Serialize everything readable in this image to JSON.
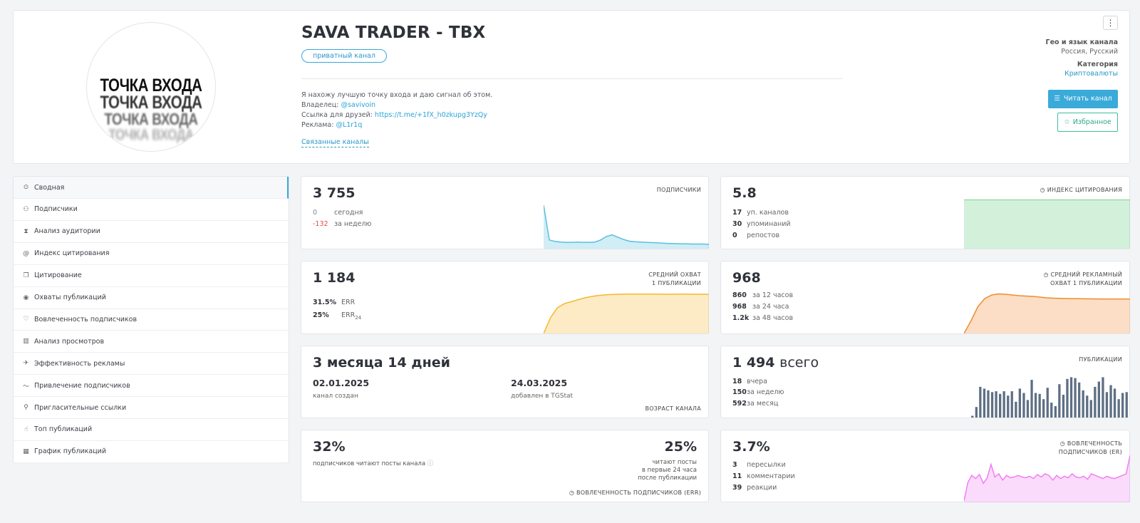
{
  "header": {
    "title": "SAVA TRADER - TBX",
    "badge": "приватный канал",
    "description": "Я нахожу лучшую точку входа и даю сигнал об этом.",
    "owner_label": "Владелец:",
    "owner": "@savivoin",
    "friends_label": "Ссылка для друзей:",
    "friends_link": "https://t.me/+1fX_h0zkupg3YzQy",
    "ads_label": "Реклама:",
    "ads": "@L1r1q",
    "related": "Связанные каналы",
    "geo_label": "Гео и язык канала",
    "geo_value": "Россия, Русский",
    "category_label": "Категория",
    "category_value": "Криптовалюты",
    "read_button": "Читать канал",
    "favorite_button": "Избранное",
    "menu_icon": "⋮",
    "avatar_logo": [
      "ТОЧКА ВХОДА",
      "ТОЧКА ВХОДА",
      "ТОЧКА ВХОДА",
      "ТОЧКА ВХОДА"
    ]
  },
  "sidebar": {
    "items": [
      {
        "label": "Сводная",
        "icon": "⊙",
        "active": true
      },
      {
        "label": "Подписчики",
        "icon": "⚇"
      },
      {
        "label": "Анализ аудитории",
        "icon": "⧗"
      },
      {
        "label": "Индекс цитирования",
        "icon": "@"
      },
      {
        "label": "Цитирование",
        "icon": "❐"
      },
      {
        "label": "Охваты публикаций",
        "icon": "◉"
      },
      {
        "label": "Вовлеченность подписчиков",
        "icon": "♡"
      },
      {
        "label": "Анализ просмотров",
        "icon": "▥"
      },
      {
        "label": "Эффективность рекламы",
        "icon": "✈"
      },
      {
        "label": "Привлечение подписчиков",
        "icon": "〜"
      },
      {
        "label": "Пригласительные ссылки",
        "icon": "⚲"
      },
      {
        "label": "Топ публикаций",
        "icon": "☝"
      },
      {
        "label": "График публикаций",
        "icon": "▦"
      }
    ]
  },
  "stats": {
    "subscribers": {
      "value": "3 755",
      "title": "ПОДПИСЧИКИ",
      "today_value": "0",
      "today_label": "сегодня",
      "week_value": "-132",
      "week_label": "за неделю"
    },
    "citation": {
      "value": "5.8",
      "title": "ИНДЕКС ЦИТИРОВАНИЯ",
      "r1v": "17",
      "r1l": "уп. каналов",
      "r2v": "30",
      "r2l": "упоминаний",
      "r3v": "0",
      "r3l": "репостов"
    },
    "reach": {
      "value": "1 184",
      "title1": "СРЕДНИЙ ОХВАТ",
      "title2": "1 ПУБЛИКАЦИИ",
      "err_value": "31.5%",
      "err_label": "ERR",
      "err24_value": "25%",
      "err24_label": "ERR",
      "err24_sub": "24"
    },
    "ad_reach": {
      "value": "968",
      "title1": "СРЕДНИЙ РЕКЛАМНЫЙ",
      "title2": "ОХВАТ 1 ПУБЛИКАЦИИ",
      "r1v": "860",
      "r1l": "за 12 часов",
      "r2v": "968",
      "r2l": "за 24 часа",
      "r3v": "1.2k",
      "r3l": "за 48 часов"
    },
    "age": {
      "value": "3 месяца 14 дней",
      "created_date": "02.01.2025",
      "created_label": "канал создан",
      "added_date": "24.03.2025",
      "added_label": "добавлен в TGStat",
      "title": "ВОЗРАСТ КАНАЛА"
    },
    "posts": {
      "value": "1 494",
      "value_suffix": "всего",
      "title": "ПУБЛИКАЦИИ",
      "r1v": "18",
      "r1l": "вчера",
      "r2v": "150",
      "r2l": "за неделю",
      "r3v": "592",
      "r3l": "за месяц"
    },
    "err": {
      "value": "32%",
      "label": "подписчиков читают посты канала",
      "value2": "25%",
      "label2a": "читают посты",
      "label2b": "в первые 24 часа",
      "label2c": "после публикации",
      "title": "ВОВЛЕЧЕННОСТЬ ПОДПИСЧИКОВ (ERR)"
    },
    "er": {
      "value": "3.7%",
      "title1": "ВОВЛЕЧЕННОСТЬ",
      "title2": "ПОДПИСЧИКОВ (ER)",
      "r1v": "3",
      "r1l": "пересылки",
      "r2v": "11",
      "r2l": "комментарии",
      "r3v": "39",
      "r3l": "реакции"
    }
  },
  "chart_data": [
    {
      "type": "area",
      "name": "subscribers",
      "color": "#5bbfe0",
      "values": [
        3890,
        3770,
        3765,
        3763,
        3762,
        3762,
        3763,
        3762,
        3762,
        3763,
        3770,
        3782,
        3788,
        3780,
        3772,
        3766,
        3764,
        3763,
        3762,
        3761,
        3760,
        3759,
        3758,
        3758,
        3757,
        3757,
        3756,
        3756,
        3756,
        3755
      ],
      "ylim": [
        3740,
        3900
      ]
    },
    {
      "type": "area",
      "name": "citation",
      "color": "#5cc97a",
      "values": [
        1,
        1,
        1,
        1,
        1,
        1,
        1,
        1,
        1,
        1
      ],
      "ylim": [
        0,
        1
      ]
    },
    {
      "type": "area",
      "name": "reach",
      "color": "#f5b82e",
      "values": [
        0,
        480,
        780,
        900,
        960,
        1020,
        1080,
        1120,
        1150,
        1170,
        1180,
        1186,
        1188,
        1190,
        1192,
        1190,
        1188,
        1186,
        1185,
        1186,
        1188,
        1187,
        1186,
        1185,
        1184
      ],
      "ylim": [
        0,
        1400
      ]
    },
    {
      "type": "area",
      "name": "ad_reach",
      "color": "#f28a2e",
      "values": [
        0,
        350,
        750,
        980,
        1080,
        1110,
        1100,
        1080,
        1060,
        1050,
        1040,
        1020,
        1000,
        990,
        985,
        980,
        978,
        975,
        972,
        970,
        968,
        968,
        968,
        968,
        968
      ],
      "ylim": [
        0,
        1300
      ]
    },
    {
      "type": "bar",
      "name": "posts",
      "color": "#5e6f84",
      "values": [
        2,
        12,
        35,
        33,
        31,
        29,
        30,
        27,
        30,
        25,
        30,
        18,
        33,
        28,
        20,
        43,
        28,
        27,
        21,
        34,
        17,
        13,
        38,
        26,
        44,
        46,
        45,
        40,
        31,
        25,
        20,
        35,
        41,
        46,
        29,
        37,
        33,
        21,
        28,
        29
      ],
      "ylim": [
        0,
        52
      ]
    },
    {
      "type": "area",
      "name": "er",
      "color": "#f07ef2",
      "values": [
        0.2,
        2.5,
        3.4,
        3.0,
        3.5,
        2.4,
        3.1,
        4.8,
        3.2,
        3.6,
        2.8,
        3.4,
        3.1,
        3.2,
        3.4,
        3.2,
        3.1,
        3.3,
        3.0,
        3.5,
        3.2,
        3.6,
        3.4,
        2.8,
        3.4,
        3.0,
        3.3,
        3.1,
        3.6,
        3.2,
        3.1,
        3.3,
        2.9,
        3.6,
        3.4,
        3.2,
        3.0,
        3.3,
        3.1,
        3.0,
        3.2,
        3.4,
        3.6,
        5.9
      ],
      "ylim": [
        0,
        6.2
      ]
    }
  ]
}
